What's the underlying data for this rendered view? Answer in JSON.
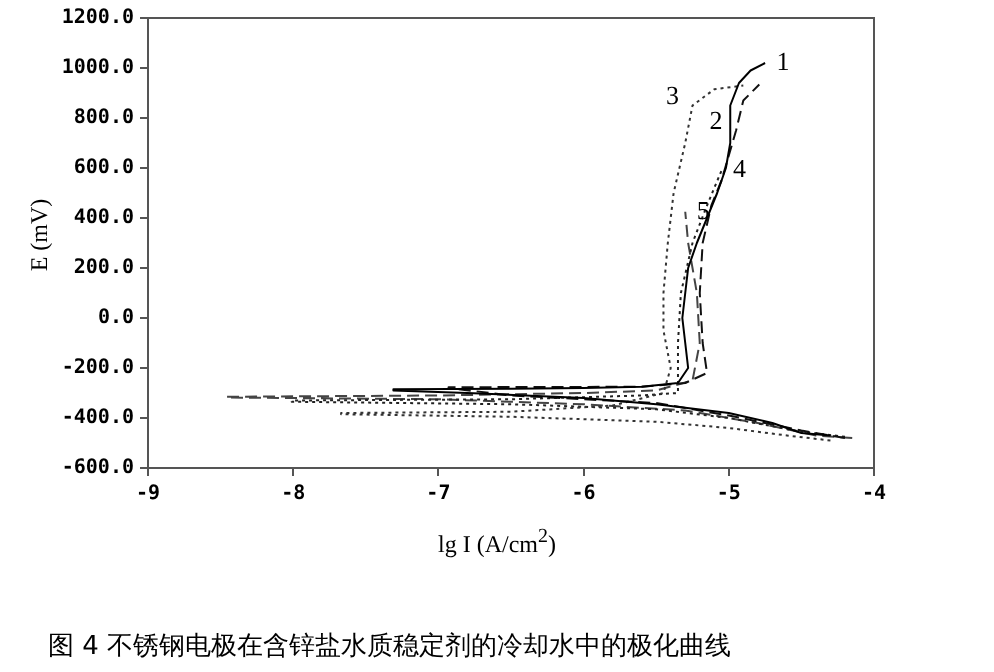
{
  "chart_data": {
    "type": "line",
    "title": "图 4  不锈钢电极在含锌盐水质稳定剂的冷却水中的极化曲线",
    "xlabel": "lg I (A/cm$^{2}$)",
    "ylabel": "E (mV)",
    "xlim": [
      -9,
      -4
    ],
    "xticks": [
      -9,
      -8,
      -7,
      -6,
      -5,
      -4
    ],
    "ylim": [
      -600,
      1200
    ],
    "yticks": [
      {
        "value": -600,
        "label": "-600.0"
      },
      {
        "value": -400,
        "label": "-400.0"
      },
      {
        "value": -200,
        "label": "-200.0"
      },
      {
        "value": 0,
        "label": "0.0"
      },
      {
        "value": 200,
        "label": "200.0"
      },
      {
        "value": 400,
        "label": "400.0"
      },
      {
        "value": 600,
        "label": "600.0"
      },
      {
        "value": 800,
        "label": "800.0"
      },
      {
        "value": 1000,
        "label": "1000.0"
      },
      {
        "value": 1200,
        "label": "1200.0"
      }
    ],
    "grid": false,
    "legend": false,
    "series": [
      {
        "name": "1",
        "color": "#000000",
        "line_style": "solid",
        "x": [
          -4.3,
          -4.5,
          -4.7,
          -5.0,
          -5.5,
          -6.0,
          -6.8,
          -7.31,
          -7.31,
          -6.5,
          -6.0,
          -5.6,
          -5.35,
          -5.28,
          -5.3,
          -5.32,
          -5.3,
          -5.28,
          -5.22,
          -5.15,
          -5.08,
          -5.02,
          -4.99,
          -4.99,
          -4.93,
          -4.85,
          -4.75
        ],
        "values": [
          -470,
          -460,
          -420,
          -380,
          -345,
          -320,
          -300,
          -290,
          -285,
          -283,
          -280,
          -275,
          -260,
          -200,
          -100,
          0,
          100,
          200,
          300,
          400,
          500,
          600,
          700,
          850,
          940,
          990,
          1020
        ]
      },
      {
        "name": "2",
        "color": "#111111",
        "line_style": "dashed",
        "x": [
          -4.2,
          -4.5,
          -5.0,
          -5.5,
          -6.5,
          -6.93,
          -6.93,
          -6.3,
          -5.6,
          -5.3,
          -5.15,
          -5.18,
          -5.2,
          -5.18,
          -5.12,
          -5.05,
          -5.0,
          -4.95,
          -4.9,
          -4.79
        ],
        "values": [
          -480,
          -450,
          -390,
          -340,
          -310,
          -280,
          -277,
          -276,
          -275,
          -260,
          -220,
          -100,
          100,
          300,
          450,
          550,
          650,
          750,
          870,
          934
        ]
      },
      {
        "name": "3",
        "color": "#333333",
        "line_style": "dotted",
        "x": [
          -4.3,
          -4.6,
          -5.0,
          -5.5,
          -6.5,
          -7.67,
          -7.67,
          -6.5,
          -5.8,
          -5.45,
          -5.4,
          -5.45,
          -5.45,
          -5.42,
          -5.38,
          -5.3,
          -5.25,
          -5.1,
          -4.9
        ],
        "values": [
          -490,
          -470,
          -440,
          -415,
          -395,
          -385,
          -380,
          -375,
          -350,
          -300,
          -200,
          -50,
          100,
          300,
          500,
          700,
          850,
          915,
          930
        ]
      },
      {
        "name": "4",
        "color": "#222222",
        "line_style": "dotted",
        "x": [
          -4.2,
          -4.5,
          -5.0,
          -5.5,
          -6.5,
          -8.01,
          -8.01,
          -6.5,
          -5.6,
          -5.35,
          -5.35,
          -5.33,
          -5.25,
          -5.15,
          -5.05
        ],
        "values": [
          -475,
          -455,
          -400,
          -365,
          -345,
          -335,
          -330,
          -325,
          -310,
          -300,
          -100,
          100,
          300,
          450,
          590
        ]
      },
      {
        "name": "5",
        "color": "#444444",
        "line_style": "dashed",
        "x": [
          -4.15,
          -4.4,
          -4.8,
          -5.3,
          -6.0,
          -7.0,
          -8.46,
          -8.46,
          -7.0,
          -6.0,
          -5.5,
          -5.25,
          -5.2,
          -5.22,
          -5.28,
          -5.3
        ],
        "values": [
          -480,
          -470,
          -420,
          -370,
          -345,
          -325,
          -318,
          -315,
          -310,
          -300,
          -290,
          -250,
          -100,
          100,
          300,
          425
        ]
      }
    ]
  }
}
